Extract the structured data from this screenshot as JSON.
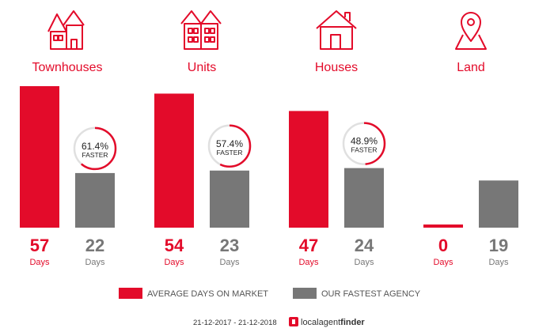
{
  "chart_data": {
    "type": "bar",
    "categories": [
      "Townhouses",
      "Units",
      "Houses",
      "Land"
    ],
    "series": [
      {
        "name": "AVERAGE DAYS ON MARKET",
        "values": [
          57,
          54,
          47,
          0
        ],
        "color": "#e30b2a"
      },
      {
        "name": "OUR FASTEST AGENCY",
        "values": [
          22,
          23,
          24,
          19
        ],
        "color": "#777777"
      }
    ],
    "unit_label": "Days",
    "ylim": [
      0,
      57
    ],
    "faster": [
      {
        "pct": "61.4%",
        "label": "FASTER",
        "fraction": 0.614
      },
      {
        "pct": "57.4%",
        "label": "FASTER",
        "fraction": 0.574
      },
      {
        "pct": "48.9%",
        "label": "FASTER",
        "fraction": 0.489
      },
      null
    ],
    "icons": [
      "townhouses-icon",
      "units-icon",
      "houses-icon",
      "land-pin-icon"
    ]
  },
  "footer": {
    "date_range": "21-12-2017 - 21-12-2018",
    "brand_local": "localagent",
    "brand_finder": "finder"
  },
  "colors": {
    "accent": "#e30b2a",
    "grey": "#777777",
    "track": "#e0e0e0"
  }
}
